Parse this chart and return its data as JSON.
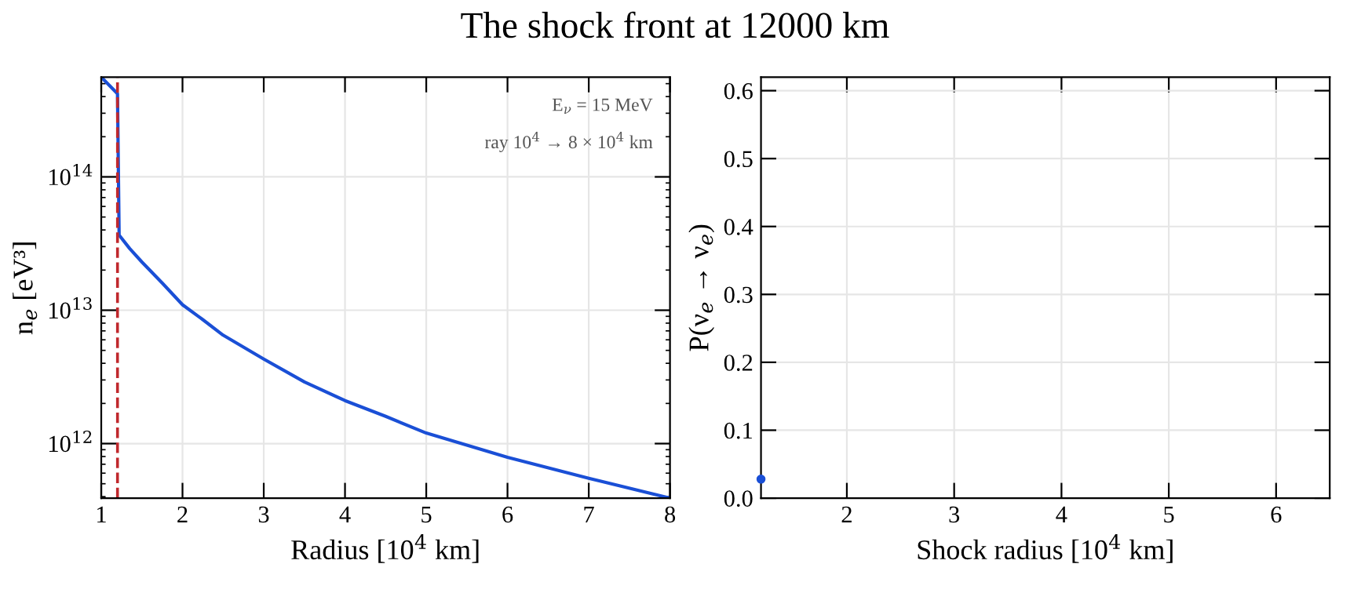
{
  "chart_data": [
    {
      "type": "line",
      "title": "The shock front at 12000 km",
      "xlabel": "Radius [10$^{4}$ km]",
      "ylabel": "n$_{e}$ [eV³]",
      "log": "y",
      "series": [
        {
          "color": "#1a4fd6",
          "x": [
            1,
            1.2,
            1.22,
            1.35,
            1.5,
            1.75,
            2,
            2.25,
            2.5,
            3,
            3.5,
            4,
            4.5,
            5,
            6,
            7,
            8
          ],
          "values": [
            560000000000000.0,
            420000000000000.0,
            36600000000000.0,
            29000000000000.0,
            23000000000000.0,
            16000000000000.0,
            11000000000000.0,
            8500000000000.0,
            6500000000000.0,
            4300000000000.0,
            2900000000000.0,
            2100000000000.0,
            1600000000000.0,
            1200000000000.0,
            790000000000.0,
            550000000000.0,
            390000000000.0
          ]
        }
      ],
      "xlim": [
        1,
        8
      ],
      "xticks": [
        1,
        2,
        3,
        4,
        5,
        6,
        7,
        8
      ],
      "ylim": [
        390000000000.0,
        560000000000000.0
      ],
      "yticks": [
        {
          "value": 1000000000000.0,
          "label": "10$^{12}$"
        },
        {
          "value": 10000000000000.0,
          "label": "10$^{13}$"
        },
        {
          "value": 100000000000000.0,
          "label": "10$^{14}$"
        }
      ],
      "ref_lines": [
        {
          "axis": "x",
          "value": 1.2,
          "color": "#c0282d",
          "line_style": "dashed"
        }
      ],
      "annotations": [
        "E$_{ν}$ = 15 MeV",
        "ray 10$^{4}$ → 8 × 10$^{4}$ km"
      ],
      "grid": true,
      "marker": "none",
      "line_style": "solid"
    },
    {
      "type": "scatter",
      "xlabel": "Shock radius [10$^{4}$ km]",
      "ylabel": "P(ν$_{e}$ → ν$_{e}$)",
      "series": [
        {
          "color": "#1a4fd6",
          "x": [
            1.2
          ],
          "values": [
            0.028
          ]
        }
      ],
      "xlim": [
        1.2,
        6.5
      ],
      "xticks": [
        2,
        3,
        4,
        5,
        6
      ],
      "ylim": [
        0,
        0.62
      ],
      "yticks": [
        {
          "value": 0,
          "label": "0.0"
        },
        0.1,
        0.2,
        0.3,
        0.4,
        0.5,
        0.6
      ],
      "grid": true,
      "marker": "circle"
    }
  ]
}
